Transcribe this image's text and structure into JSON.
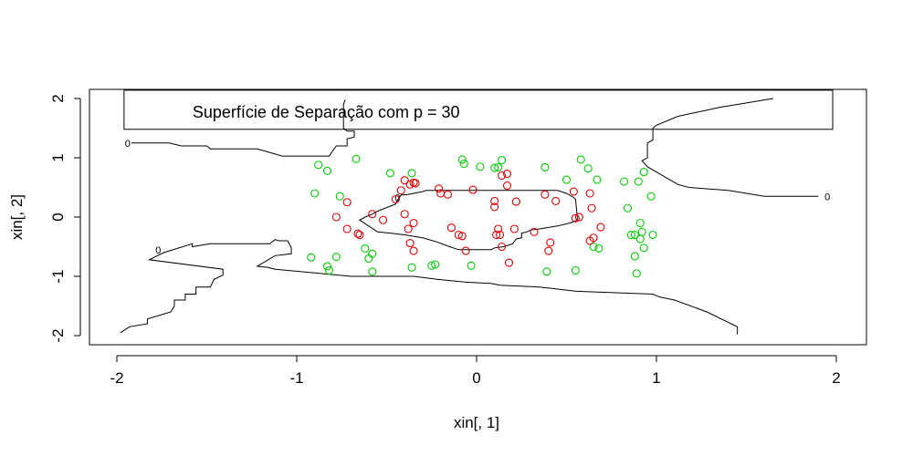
{
  "chart_data": {
    "type": "scatter",
    "title": "",
    "xlabel": "xin[, 1]",
    "ylabel": "xin[, 2]",
    "xlim": [
      -2.1,
      2.15
    ],
    "ylim": [
      -2.1,
      2.1
    ],
    "x_ticks": [
      -2,
      -1,
      0,
      1,
      2
    ],
    "y_ticks": [
      -2,
      -1,
      0,
      1,
      2
    ],
    "grid": false,
    "legend": {
      "text": "Superfície de Separação com p = 30",
      "placement": "top",
      "box": [
        -1.96,
        1.48,
        1.98,
        2.14
      ]
    },
    "colors": {
      "class_green": "#00cc00",
      "class_red": "#dd0000",
      "contour": "#000000"
    },
    "series": [
      {
        "color": "#00cc00",
        "points": [
          [
            -0.88,
            0.88
          ],
          [
            -0.83,
            0.78
          ],
          [
            -0.9,
            0.4
          ],
          [
            -0.76,
            0.35
          ],
          [
            -0.67,
            0.98
          ],
          [
            -0.48,
            0.74
          ],
          [
            -0.36,
            0.74
          ],
          [
            -0.92,
            -0.68
          ],
          [
            -0.83,
            -0.83
          ],
          [
            -0.82,
            -0.9
          ],
          [
            -0.78,
            -0.67
          ],
          [
            -0.62,
            -0.53
          ],
          [
            -0.58,
            -0.62
          ],
          [
            -0.6,
            -0.7
          ],
          [
            -0.58,
            -0.92
          ],
          [
            -0.36,
            -0.85
          ],
          [
            -0.23,
            -0.8
          ],
          [
            -0.25,
            -0.82
          ],
          [
            -0.03,
            -0.82
          ],
          [
            0.02,
            0.85
          ],
          [
            -0.08,
            0.97
          ],
          [
            -0.07,
            0.9
          ],
          [
            0.1,
            0.83
          ],
          [
            0.12,
            0.84
          ],
          [
            0.14,
            0.96
          ],
          [
            0.38,
            0.84
          ],
          [
            0.5,
            0.63
          ],
          [
            0.58,
            0.97
          ],
          [
            0.62,
            0.82
          ],
          [
            0.67,
            0.63
          ],
          [
            0.65,
            -0.5
          ],
          [
            0.68,
            -0.53
          ],
          [
            0.82,
            0.6
          ],
          [
            0.84,
            0.15
          ],
          [
            0.9,
            0.6
          ],
          [
            0.93,
            0.76
          ],
          [
            0.97,
            0.35
          ],
          [
            0.88,
            -0.3
          ],
          [
            0.91,
            -0.1
          ],
          [
            0.92,
            -0.25
          ],
          [
            0.86,
            -0.3
          ],
          [
            0.91,
            -0.37
          ],
          [
            0.93,
            -0.52
          ],
          [
            0.98,
            -0.3
          ],
          [
            0.88,
            -0.66
          ],
          [
            0.89,
            -0.95
          ],
          [
            0.39,
            -0.92
          ],
          [
            0.55,
            -0.9
          ]
        ]
      },
      {
        "color": "#dd0000",
        "points": [
          [
            -0.78,
            0.0
          ],
          [
            -0.72,
            0.25
          ],
          [
            -0.72,
            -0.2
          ],
          [
            -0.66,
            -0.28
          ],
          [
            -0.65,
            -0.3
          ],
          [
            -0.58,
            0.05
          ],
          [
            -0.52,
            -0.05
          ],
          [
            -0.45,
            0.3
          ],
          [
            -0.42,
            0.45
          ],
          [
            -0.4,
            0.62
          ],
          [
            -0.37,
            0.55
          ],
          [
            -0.35,
            0.58
          ],
          [
            -0.34,
            0.57
          ],
          [
            -0.4,
            0.05
          ],
          [
            -0.38,
            -0.2
          ],
          [
            -0.35,
            -0.1
          ],
          [
            -0.37,
            -0.44
          ],
          [
            -0.35,
            -0.57
          ],
          [
            -0.2,
            0.4
          ],
          [
            -0.21,
            0.48
          ],
          [
            -0.16,
            0.38
          ],
          [
            -0.14,
            -0.18
          ],
          [
            -0.1,
            -0.3
          ],
          [
            -0.08,
            -0.32
          ],
          [
            -0.06,
            -0.57
          ],
          [
            -0.02,
            0.46
          ],
          [
            0.1,
            0.27
          ],
          [
            0.1,
            0.17
          ],
          [
            0.14,
            0.7
          ],
          [
            0.17,
            0.73
          ],
          [
            0.17,
            0.53
          ],
          [
            0.22,
            0.26
          ],
          [
            0.12,
            -0.2
          ],
          [
            0.11,
            -0.3
          ],
          [
            0.13,
            -0.3
          ],
          [
            0.14,
            -0.5
          ],
          [
            0.18,
            -0.77
          ],
          [
            0.21,
            -0.2
          ],
          [
            0.32,
            -0.25
          ],
          [
            0.38,
            0.38
          ],
          [
            0.44,
            0.27
          ],
          [
            0.4,
            -0.57
          ],
          [
            0.41,
            -0.43
          ],
          [
            0.54,
            0.43
          ],
          [
            0.55,
            -0.02
          ],
          [
            0.57,
            0.0
          ],
          [
            0.63,
            0.4
          ],
          [
            0.64,
            0.15
          ],
          [
            0.65,
            -0.35
          ],
          [
            0.63,
            -0.4
          ],
          [
            0.69,
            -0.17
          ]
        ]
      }
    ],
    "contours": [
      {
        "label": "0",
        "label_at": [
          -1.94,
          1.25
        ],
        "points": [
          [
            -1.92,
            1.25
          ],
          [
            -1.71,
            1.25
          ],
          [
            -1.64,
            1.2
          ],
          [
            -1.5,
            1.2
          ],
          [
            -1.48,
            1.15
          ],
          [
            -1.22,
            1.15
          ],
          [
            -1.08,
            1.03
          ],
          [
            -0.82,
            1.03
          ],
          [
            -0.78,
            1.2
          ],
          [
            -0.72,
            1.2
          ],
          [
            -0.72,
            1.32
          ],
          [
            -0.68,
            1.35
          ],
          [
            -0.68,
            1.45
          ],
          [
            -0.72,
            1.45
          ],
          [
            -0.74,
            1.5
          ],
          [
            -0.74,
            1.9
          ],
          [
            -0.73,
            1.98
          ]
        ]
      },
      {
        "label": "0",
        "label_at": [
          -1.77,
          -0.55
        ],
        "points": [
          [
            -1.98,
            -1.95
          ],
          [
            -1.93,
            -1.85
          ],
          [
            -1.83,
            -1.8
          ],
          [
            -1.83,
            -1.72
          ],
          [
            -1.7,
            -1.6
          ],
          [
            -1.68,
            -1.5
          ],
          [
            -1.68,
            -1.4
          ],
          [
            -1.62,
            -1.4
          ],
          [
            -1.62,
            -1.3
          ],
          [
            -1.56,
            -1.3
          ],
          [
            -1.56,
            -1.18
          ],
          [
            -1.48,
            -1.18
          ],
          [
            -1.46,
            -1.05
          ],
          [
            -1.41,
            -0.98
          ],
          [
            -1.41,
            -0.88
          ],
          [
            -1.82,
            -0.72
          ],
          [
            -1.74,
            -0.6
          ],
          [
            -1.58,
            -0.45
          ],
          [
            -1.58,
            -0.5
          ],
          [
            -1.48,
            -0.45
          ],
          [
            -1.15,
            -0.45
          ],
          [
            -1.12,
            -0.38
          ],
          [
            -1.1,
            -0.4
          ],
          [
            -1.05,
            -0.4
          ],
          [
            -1.03,
            -0.52
          ],
          [
            -1.03,
            -0.62
          ],
          [
            -1.12,
            -0.65
          ],
          [
            -1.22,
            -0.83
          ],
          [
            -1.16,
            -0.85
          ],
          [
            -1.12,
            -0.88
          ],
          [
            -0.98,
            -0.92
          ],
          [
            -0.7,
            -1.0
          ],
          [
            -0.35,
            -1.0
          ],
          [
            -0.22,
            -1.05
          ],
          [
            -0.05,
            -1.1
          ],
          [
            0.08,
            -1.12
          ],
          [
            0.13,
            -1.15
          ],
          [
            0.35,
            -1.18
          ],
          [
            0.55,
            -1.25
          ],
          [
            0.98,
            -1.3
          ],
          [
            1.02,
            -1.35
          ],
          [
            1.1,
            -1.4
          ],
          [
            1.28,
            -1.6
          ],
          [
            1.45,
            -1.85
          ],
          [
            1.45,
            -1.98
          ]
        ]
      },
      {
        "label": "0",
        "label_at": [
          1.95,
          0.35
        ],
        "points": [
          [
            1.65,
            2.0
          ],
          [
            1.35,
            1.85
          ],
          [
            1.12,
            1.7
          ],
          [
            1.0,
            1.55
          ],
          [
            0.98,
            1.5
          ],
          [
            0.98,
            1.3
          ],
          [
            0.95,
            1.25
          ],
          [
            0.95,
            1.0
          ],
          [
            0.92,
            0.95
          ],
          [
            0.95,
            0.85
          ],
          [
            1.12,
            0.55
          ],
          [
            1.18,
            0.5
          ],
          [
            1.4,
            0.45
          ],
          [
            1.6,
            0.35
          ],
          [
            1.9,
            0.35
          ]
        ]
      },
      {
        "label": "0",
        "label_at": [
          -0.44,
          0.33
        ],
        "points": [
          [
            -0.43,
            0.33
          ],
          [
            -0.42,
            0.37
          ],
          [
            -0.38,
            0.38
          ],
          [
            -0.35,
            0.4
          ],
          [
            -0.3,
            0.43
          ],
          [
            -0.28,
            0.45
          ],
          [
            0.45,
            0.45
          ],
          [
            0.5,
            0.4
          ],
          [
            0.54,
            0.33
          ],
          [
            0.55,
            0.3
          ],
          [
            0.56,
            0.0
          ],
          [
            0.56,
            -0.05
          ],
          [
            0.52,
            -0.1
          ],
          [
            0.45,
            -0.15
          ],
          [
            0.35,
            -0.2
          ],
          [
            0.3,
            -0.22
          ],
          [
            0.28,
            -0.25
          ],
          [
            0.25,
            -0.27
          ],
          [
            0.25,
            -0.35
          ],
          [
            0.22,
            -0.37
          ],
          [
            0.2,
            -0.45
          ],
          [
            0.15,
            -0.5
          ],
          [
            0.1,
            -0.52
          ],
          [
            0.08,
            -0.55
          ],
          [
            -0.1,
            -0.55
          ],
          [
            -0.15,
            -0.5
          ],
          [
            -0.22,
            -0.42
          ],
          [
            -0.3,
            -0.35
          ],
          [
            -0.4,
            -0.3
          ],
          [
            -0.48,
            -0.27
          ],
          [
            -0.55,
            -0.25
          ],
          [
            -0.6,
            -0.15
          ],
          [
            -0.65,
            -0.05
          ],
          [
            -0.62,
            0.0
          ],
          [
            -0.58,
            0.05
          ],
          [
            -0.55,
            0.1
          ],
          [
            -0.45,
            0.22
          ],
          [
            -0.44,
            0.28
          ],
          [
            -0.43,
            0.33
          ]
        ]
      }
    ]
  }
}
